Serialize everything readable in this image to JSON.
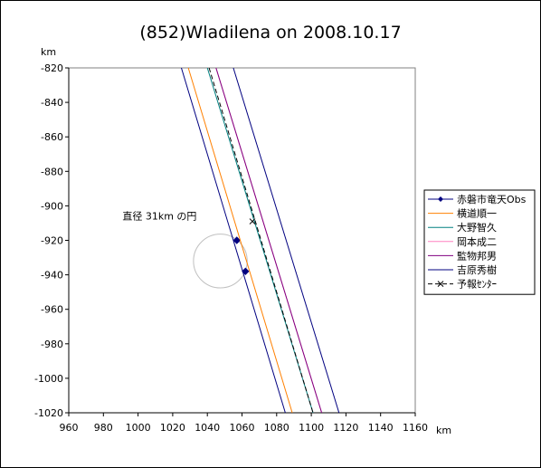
{
  "chart_data": {
    "type": "line",
    "title": "(852)Wladilena on 2008.10.17",
    "xunit": "km",
    "yunit": "km",
    "xlim": [
      960,
      1160
    ],
    "ylim": [
      -1020,
      -820
    ],
    "xticks": [
      960,
      980,
      1000,
      1020,
      1040,
      1060,
      1080,
      1100,
      1120,
      1140,
      1160
    ],
    "yticks": [
      -820,
      -840,
      -860,
      -880,
      -900,
      -920,
      -940,
      -960,
      -980,
      -1000,
      -1020
    ],
    "xtick_labels": [
      "960",
      "980",
      "1000",
      "1020",
      "1040",
      "1060",
      "1080",
      "1100",
      "1120",
      "1140",
      "1160"
    ],
    "ytick_labels": [
      "-820",
      "-840",
      "-860",
      "-880",
      "-900",
      "-920",
      "-940",
      "-960",
      "-980",
      "-1000",
      "-1020"
    ],
    "grid": false,
    "legend_position": "right",
    "annotation": {
      "text": "直径 31km の円",
      "circle": {
        "cx": 1047.5,
        "cy": -932,
        "r": 15.5,
        "color": "#c0c0c0"
      }
    },
    "series": [
      {
        "name": "赤磐市竜天Obs",
        "color": "#000080",
        "marker": "diamond",
        "style": "chord",
        "x": [
          1057,
          1062
        ],
        "y": [
          -920,
          -938
        ]
      },
      {
        "name": "横道順一",
        "color": "#ff8000",
        "style": "line",
        "x": [
          1029,
          1089
        ],
        "y": [
          -820,
          -1020
        ]
      },
      {
        "name": "大野智久",
        "color": "#008080",
        "style": "line",
        "x": [
          1040,
          1101
        ],
        "y": [
          -820,
          -1020
        ]
      },
      {
        "name": "岡本成二",
        "color": "#ff80c0",
        "style": "line",
        "x": [
          1045,
          1106
        ],
        "y": [
          -820,
          -1020
        ]
      },
      {
        "name": "監物邦男",
        "color": "#800080",
        "style": "line",
        "x": [
          1045,
          1106
        ],
        "y": [
          -820,
          -1020
        ]
      },
      {
        "name": "吉原秀樹",
        "color": "#000080",
        "style": "limits",
        "x": [
          1025,
          1085
        ],
        "y": [
          -820,
          -1020
        ],
        "x2": [
          1055,
          1116
        ],
        "y2": [
          -820,
          -1020
        ]
      },
      {
        "name": "予報ｾﾝﾀｰ",
        "color": "#000000",
        "marker": "x",
        "style": "dashed",
        "x": [
          1041,
          1101
        ],
        "y": [
          -820,
          -1020
        ],
        "center": {
          "x": 1066,
          "y": -909
        }
      }
    ]
  }
}
